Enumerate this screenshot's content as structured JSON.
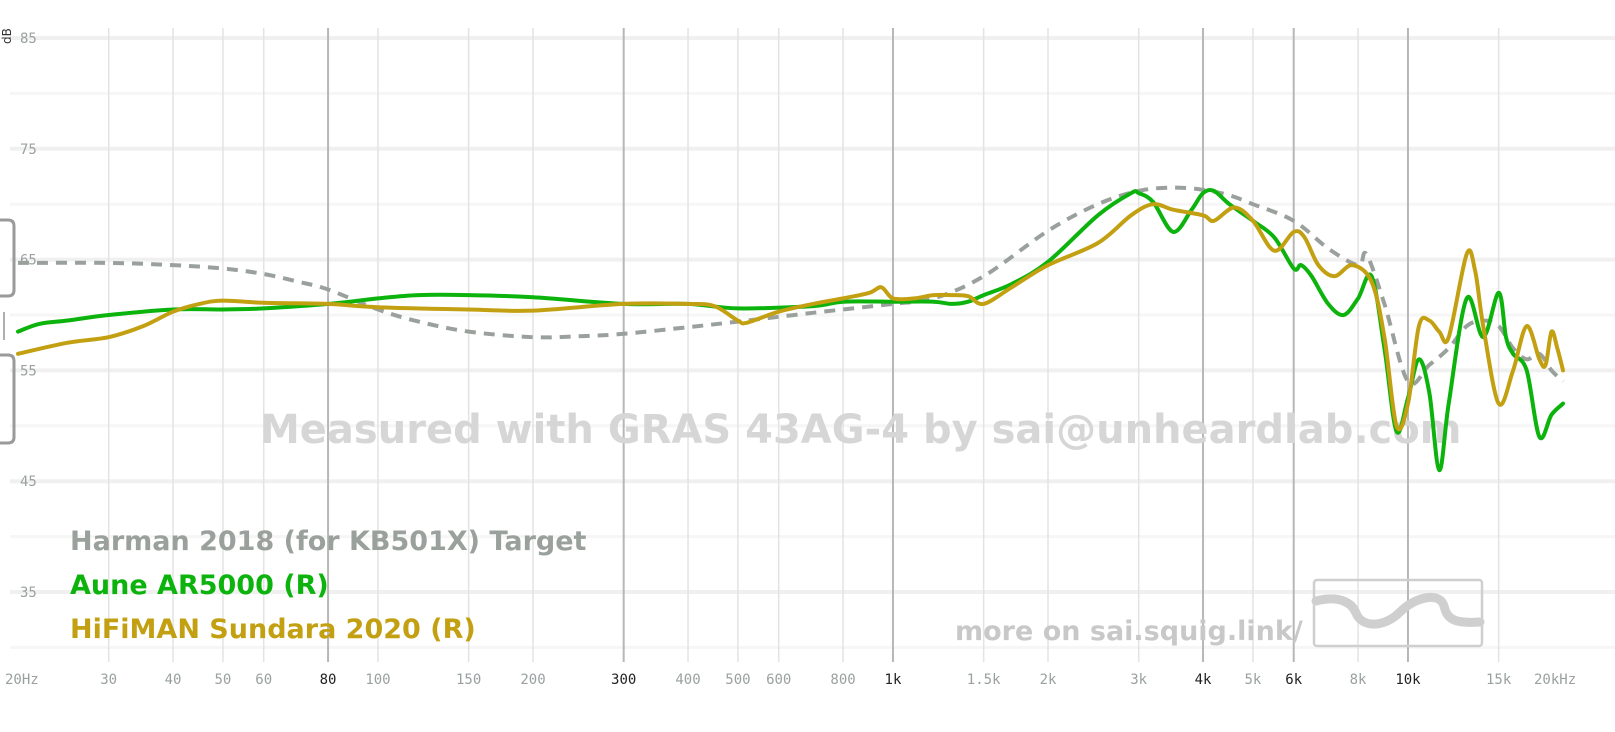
{
  "colors": {
    "target": "#9aa19c",
    "aune": "#0cb30c",
    "sundara": "#c3a012",
    "grid_minor": "#e3e3e3",
    "grid_major": "#b7b7b7"
  },
  "watermark": "Measured with GRAS 43AG-4 by sai@unheardlab.com",
  "more_link": "more on sai.squig.link/",
  "chart_data": {
    "type": "line",
    "x_scale": "log",
    "grid": true,
    "legend_position": "bottom-left",
    "xlim": [
      20,
      20000
    ],
    "ylim": [
      30,
      87
    ],
    "ylabel": "dB",
    "yticks": [
      {
        "value": 85,
        "label": "85"
      },
      {
        "value": 75,
        "label": "75"
      },
      {
        "value": 65,
        "label": "65"
      },
      {
        "value": 55,
        "label": "55"
      },
      {
        "value": 45,
        "label": "45"
      },
      {
        "value": 35,
        "label": "35"
      }
    ],
    "xticks": [
      {
        "value": 20,
        "label": "20Hz",
        "major": false
      },
      {
        "value": 30,
        "label": "30",
        "major": false
      },
      {
        "value": 40,
        "label": "40",
        "major": false
      },
      {
        "value": 50,
        "label": "50",
        "major": false
      },
      {
        "value": 60,
        "label": "60",
        "major": false
      },
      {
        "value": 80,
        "label": "80",
        "major": true
      },
      {
        "value": 100,
        "label": "100",
        "major": false
      },
      {
        "value": 150,
        "label": "150",
        "major": false
      },
      {
        "value": 200,
        "label": "200",
        "major": false
      },
      {
        "value": 300,
        "label": "300",
        "major": true
      },
      {
        "value": 400,
        "label": "400",
        "major": false
      },
      {
        "value": 500,
        "label": "500",
        "major": false
      },
      {
        "value": 600,
        "label": "600",
        "major": false
      },
      {
        "value": 800,
        "label": "800",
        "major": false
      },
      {
        "value": 1000,
        "label": "1k",
        "major": true
      },
      {
        "value": 1500,
        "label": "1.5k",
        "major": false
      },
      {
        "value": 2000,
        "label": "2k",
        "major": false
      },
      {
        "value": 3000,
        "label": "3k",
        "major": false
      },
      {
        "value": 4000,
        "label": "4k",
        "major": true
      },
      {
        "value": 5000,
        "label": "5k",
        "major": false
      },
      {
        "value": 6000,
        "label": "6k",
        "major": true
      },
      {
        "value": 8000,
        "label": "8k",
        "major": false
      },
      {
        "value": 10000,
        "label": "10k",
        "major": true
      },
      {
        "value": 15000,
        "label": "15k",
        "major": false
      },
      {
        "value": 20000,
        "label": "20kHz",
        "major": false
      }
    ],
    "series": [
      {
        "name": "Harman 2018 (for KB501X) Target",
        "color": "#9aa19c",
        "dashed": true,
        "x": [
          20,
          30,
          40,
          50,
          60,
          70,
          80,
          100,
          120,
          150,
          200,
          250,
          300,
          400,
          500,
          700,
          1000,
          1200,
          1500,
          2000,
          2500,
          3000,
          3500,
          4000,
          4500,
          5000,
          6000,
          7000,
          8000,
          8300,
          9000,
          10000,
          11000,
          12000,
          13000,
          14000,
          15000,
          16000,
          17000,
          18000,
          19000,
          20000
        ],
        "values": [
          64.7,
          64.7,
          64.5,
          64.2,
          63.7,
          63.0,
          62.3,
          60.5,
          59.4,
          58.5,
          58.0,
          58.1,
          58.3,
          58.9,
          59.4,
          60.2,
          61.0,
          61.5,
          63.5,
          67.6,
          70.0,
          71.2,
          71.5,
          71.3,
          70.8,
          70.0,
          68.5,
          66.0,
          64.5,
          65.5,
          61.0,
          54.0,
          55.5,
          57.0,
          59.0,
          59.5,
          59.0,
          57.0,
          56.0,
          56.5,
          55.0,
          54.0
        ]
      },
      {
        "name": "Aune AR5000 (R)",
        "color": "#0cb30c",
        "dashed": false,
        "x": [
          20,
          22,
          25,
          30,
          40,
          50,
          60,
          80,
          100,
          120,
          150,
          200,
          300,
          400,
          500,
          700,
          800,
          1000,
          1200,
          1300,
          1400,
          1500,
          1700,
          2000,
          2500,
          2900,
          3000,
          3200,
          3500,
          3800,
          4000,
          4200,
          4500,
          5000,
          5500,
          6000,
          6200,
          6500,
          7000,
          7500,
          8000,
          8500,
          9000,
          9500,
          10000,
          10500,
          11000,
          11500,
          12000,
          13000,
          14000,
          15000,
          15500,
          16000,
          17000,
          18000,
          19000,
          20000
        ],
        "values": [
          58.5,
          59.2,
          59.5,
          60.0,
          60.5,
          60.5,
          60.6,
          61.0,
          61.5,
          61.8,
          61.8,
          61.6,
          61.0,
          61.0,
          60.6,
          60.8,
          61.2,
          61.2,
          61.2,
          61.0,
          61.2,
          61.8,
          62.8,
          64.8,
          69.0,
          71.0,
          71.0,
          70.2,
          67.5,
          69.5,
          71.0,
          71.2,
          70.0,
          68.5,
          67.0,
          64.2,
          64.5,
          63.5,
          61.0,
          60.0,
          61.5,
          63.5,
          57.0,
          49.5,
          52.5,
          56.0,
          53.0,
          46.0,
          52.0,
          61.5,
          58.0,
          62.0,
          58.0,
          56.5,
          55.0,
          49.0,
          51.0,
          52.0
        ]
      },
      {
        "name": "HiFiMAN Sundara 2020 (R)",
        "color": "#c3a012",
        "dashed": false,
        "x": [
          20,
          25,
          30,
          35,
          40,
          45,
          50,
          60,
          80,
          100,
          150,
          200,
          300,
          400,
          450,
          500,
          520,
          600,
          700,
          800,
          900,
          950,
          1000,
          1100,
          1200,
          1300,
          1400,
          1500,
          1700,
          2000,
          2500,
          2900,
          3200,
          3500,
          4000,
          4200,
          4600,
          5000,
          5500,
          6000,
          6300,
          6700,
          7200,
          7800,
          8500,
          9000,
          9500,
          10000,
          10500,
          11000,
          11500,
          12000,
          13000,
          13500,
          14000,
          15000,
          16000,
          17000,
          18000,
          18500,
          19000,
          19500,
          20000
        ],
        "values": [
          56.5,
          57.5,
          58.0,
          59.0,
          60.3,
          61.0,
          61.3,
          61.1,
          61.0,
          60.7,
          60.5,
          60.4,
          61.0,
          61.0,
          60.8,
          59.5,
          59.3,
          60.3,
          61.0,
          61.5,
          62.0,
          62.5,
          61.5,
          61.5,
          61.8,
          61.8,
          61.7,
          61.0,
          62.5,
          64.5,
          66.5,
          69.0,
          70.0,
          69.5,
          69.0,
          68.5,
          69.7,
          68.5,
          65.8,
          67.5,
          67.0,
          64.5,
          63.5,
          64.5,
          63.0,
          58.0,
          50.0,
          52.0,
          59.0,
          59.5,
          58.5,
          58.0,
          65.5,
          64.0,
          59.0,
          52.0,
          55.0,
          59.0,
          56.0,
          55.5,
          58.5,
          57.0,
          55.0
        ]
      }
    ]
  }
}
